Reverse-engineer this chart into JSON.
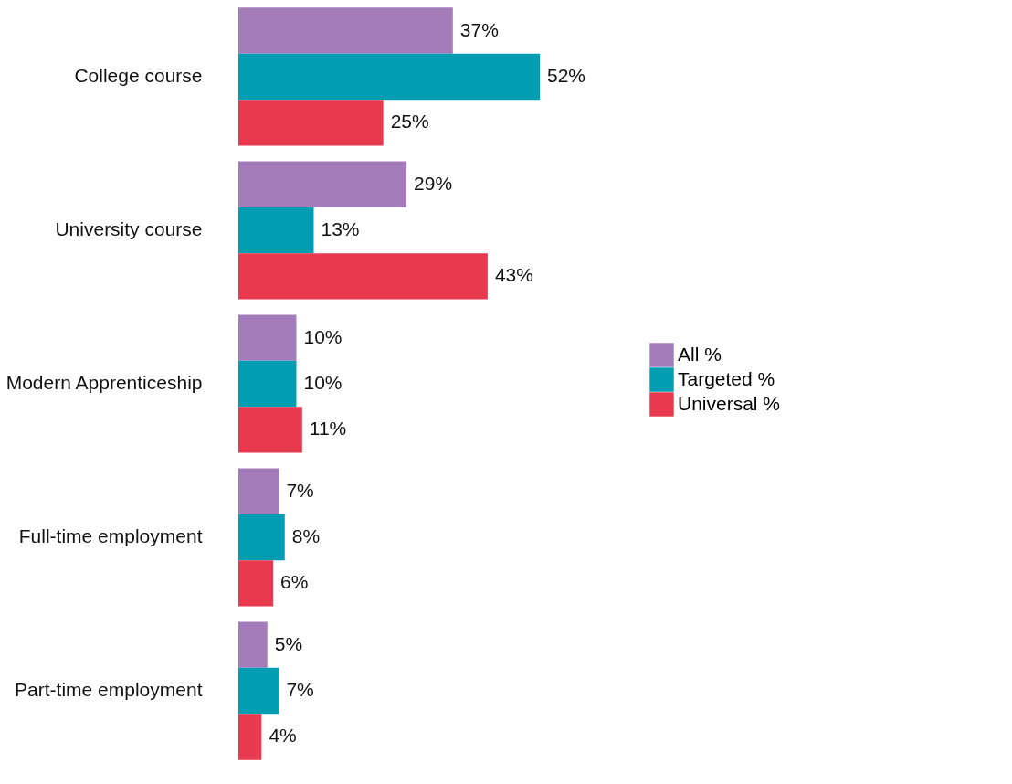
{
  "chart_data": {
    "type": "bar",
    "orientation": "horizontal",
    "categories": [
      "College course",
      "University course",
      "Modern Apprenticeship",
      "Full-time employment",
      "Part-time employment"
    ],
    "series": [
      {
        "name": "All %",
        "color": "#a57cba",
        "values": [
          37,
          29,
          10,
          7,
          5
        ],
        "value_labels": [
          "37%",
          "29%",
          "10%",
          "7%",
          "5%"
        ]
      },
      {
        "name": "Targeted %",
        "color": "#009db3",
        "values": [
          52,
          13,
          10,
          8,
          7
        ],
        "value_labels": [
          "52%",
          "13%",
          "10%",
          "8%",
          "7%"
        ]
      },
      {
        "name": "Universal %",
        "color": "#e8394f",
        "values": [
          25,
          43,
          11,
          6,
          4
        ],
        "value_labels": [
          "25%",
          "43%",
          "11%",
          "6%",
          "4%"
        ]
      }
    ],
    "legend": "right",
    "tick_labels": "y"
  }
}
